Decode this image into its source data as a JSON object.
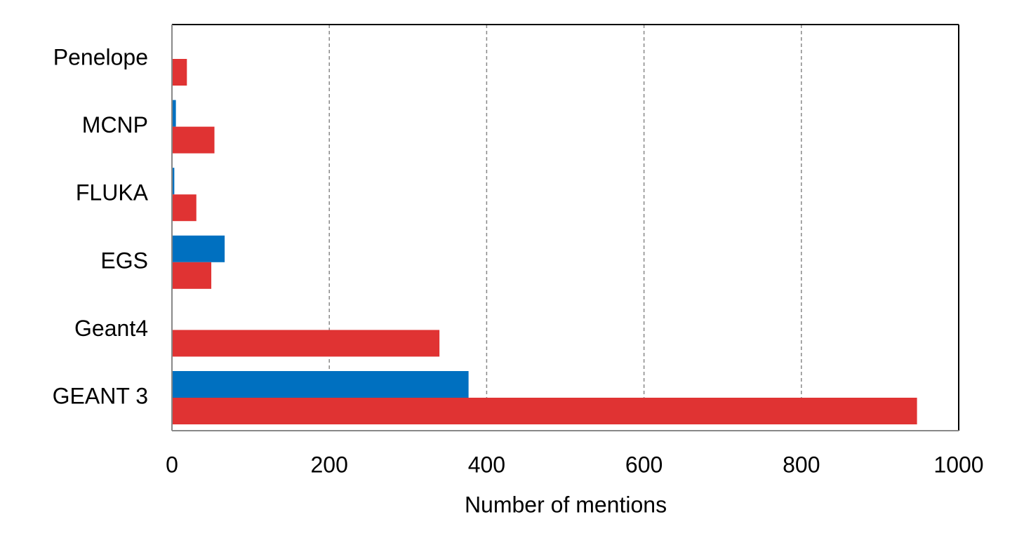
{
  "chart_data": {
    "type": "hbar",
    "x_label": "Number of mentions",
    "categories": [
      "Penelope",
      "MCNP",
      "FLUKA",
      "EGS",
      "Geant4",
      "GEANT 3"
    ],
    "series": [
      {
        "color": "#0070c0",
        "values": [
          null,
          5,
          3,
          67,
          null,
          377
        ]
      },
      {
        "color": "#e03333",
        "values": [
          19,
          54,
          31,
          50,
          340,
          947
        ]
      }
    ],
    "xlim": [
      0,
      1000
    ],
    "xticks": [
      0,
      200,
      400,
      600,
      800,
      1000
    ],
    "grid": true
  }
}
